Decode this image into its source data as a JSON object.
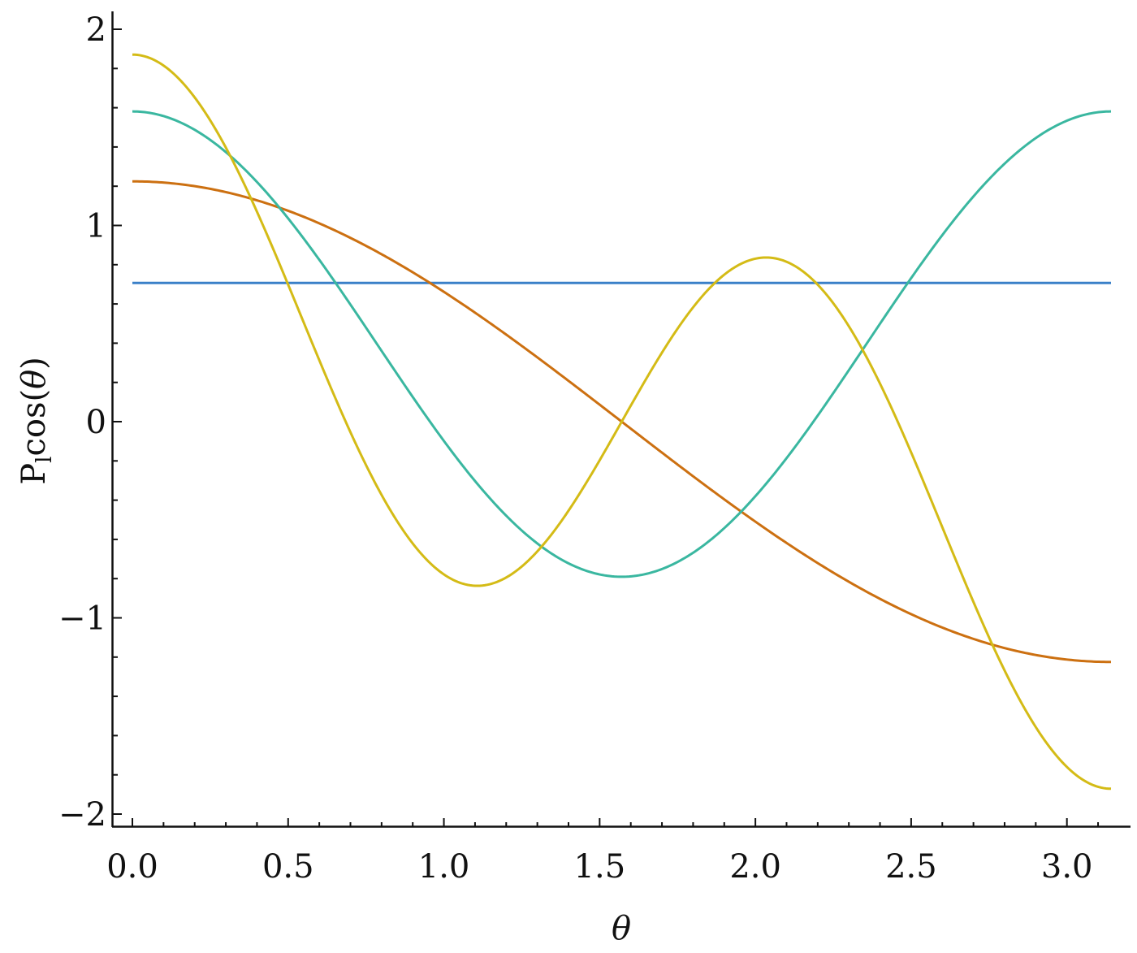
{
  "chart_data": {
    "type": "line",
    "title": "",
    "xlabel": "θ",
    "ylabel": {
      "base": "P",
      "subscript": "l",
      "rest_prefix": "cos(",
      "rest_var": "θ",
      "rest_suffix": ")"
    },
    "xlim": [
      0,
      3.14159
    ],
    "ylim": [
      -2.06,
      2.08
    ],
    "x_ticks": [
      0.0,
      0.5,
      1.0,
      1.5,
      2.0,
      2.5,
      3.0
    ],
    "x_tick_labels": [
      "0.0",
      "0.5",
      "1.0",
      "1.5",
      "2.0",
      "2.5",
      "3.0"
    ],
    "y_ticks": [
      -2,
      -1,
      0,
      1,
      2
    ],
    "y_tick_labels": [
      "−2",
      "−1",
      "0",
      "1",
      "2"
    ],
    "grid": false,
    "legend": "none",
    "series": [
      {
        "color": "#3a80c8",
        "function": "0.7071"
      },
      {
        "color": "#cc7011",
        "function": "1.2247*cos(x)"
      },
      {
        "color": "#3ab7a0",
        "function": "1.5811*(3*cos(x)^2-1)/2"
      },
      {
        "color": "#d4bb16",
        "function": "1.8708*(5*cos(x)^3-3*cos(x))/2"
      }
    ]
  }
}
